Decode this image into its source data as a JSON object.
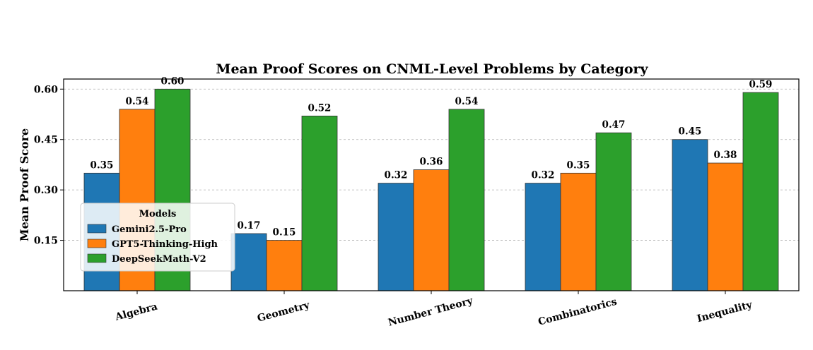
{
  "chart_data": {
    "type": "bar",
    "title": "Mean Proof Scores on CNML-Level Problems by Category",
    "xlabel": "",
    "ylabel": "Mean Proof Score",
    "ylim": [
      0,
      0.63
    ],
    "yticks": [
      "0.15",
      "0.30",
      "0.45",
      "0.60"
    ],
    "grid": "horizontal dashed",
    "categories": [
      "Algebra",
      "Geometry",
      "Number Theory",
      "Combinatorics",
      "Inequality"
    ],
    "legend": {
      "title": "Models",
      "placement": "lower-left"
    },
    "series": [
      {
        "name": "Gemini2.5-Pro",
        "color": "#1f77b4",
        "values": [
          0.35,
          0.17,
          0.32,
          0.32,
          0.45
        ]
      },
      {
        "name": "GPT5-Thinking-High",
        "color": "#ff7f0e",
        "values": [
          0.54,
          0.15,
          0.36,
          0.35,
          0.38
        ]
      },
      {
        "name": "DeepSeekMath-V2",
        "color": "#2ca02c",
        "values": [
          0.6,
          0.52,
          0.54,
          0.47,
          0.59
        ]
      }
    ]
  }
}
